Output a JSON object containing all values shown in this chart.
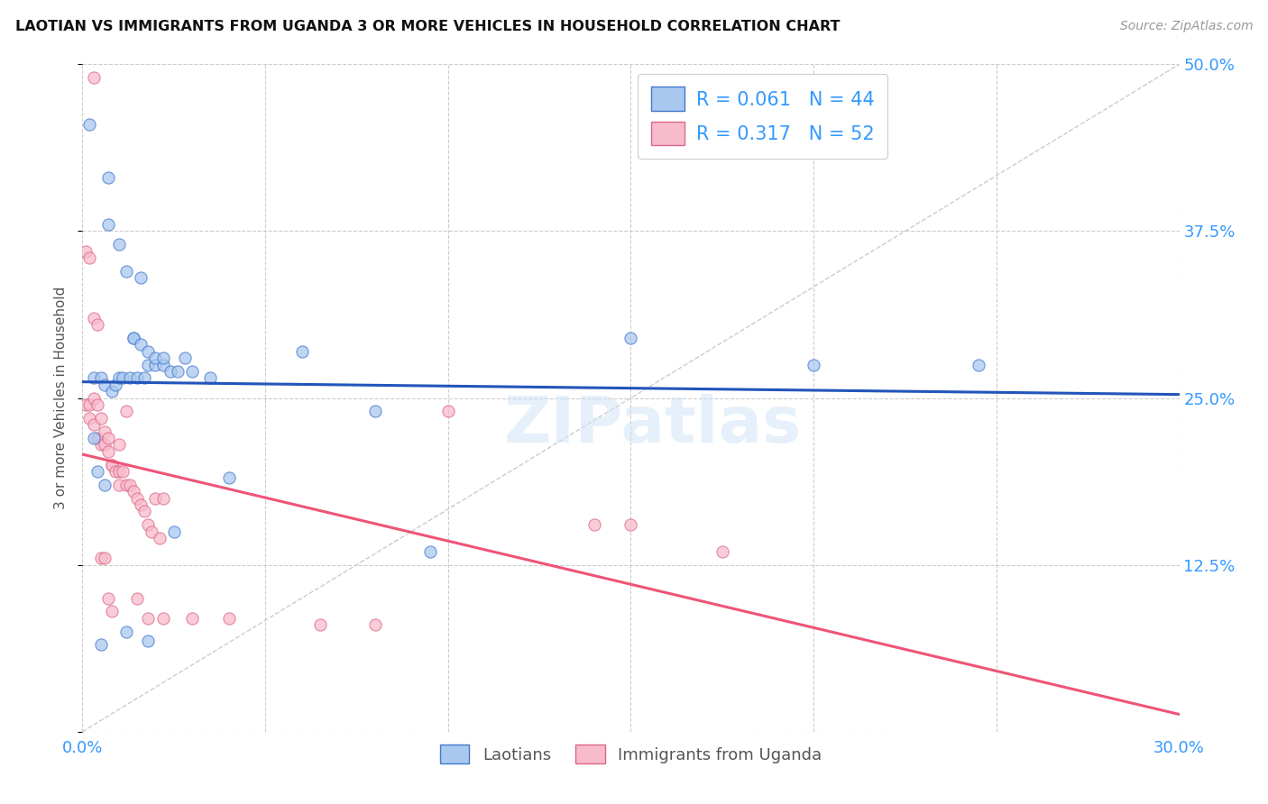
{
  "title": "LAOTIAN VS IMMIGRANTS FROM UGANDA 3 OR MORE VEHICLES IN HOUSEHOLD CORRELATION CHART",
  "source": "Source: ZipAtlas.com",
  "ylabel": "3 or more Vehicles in Household",
  "x_min": 0.0,
  "x_max": 0.3,
  "y_min": 0.0,
  "y_max": 0.5,
  "x_ticks": [
    0.0,
    0.05,
    0.1,
    0.15,
    0.2,
    0.25,
    0.3
  ],
  "x_tick_labels": [
    "0.0%",
    "",
    "",
    "",
    "",
    "",
    "30.0%"
  ],
  "y_ticks": [
    0.0,
    0.125,
    0.25,
    0.375,
    0.5
  ],
  "y_tick_labels": [
    "",
    "12.5%",
    "25.0%",
    "37.5%",
    "50.0%"
  ],
  "r1": "0.061",
  "n1": "44",
  "r2": "0.317",
  "n2": "52",
  "color_laotian_fill": "#A8C8F0",
  "color_laotian_edge": "#4477CC",
  "color_uganda_fill": "#F8BBCC",
  "color_uganda_edge": "#DD6688",
  "color_trendline_lao": "#2255BB",
  "color_trendline_uga": "#EE5577",
  "color_diagonal": "#CCCCCC",
  "watermark": "ZIPatlas",
  "lao_x": [
    0.002,
    0.007,
    0.007,
    0.01,
    0.012,
    0.014,
    0.016,
    0.018,
    0.02,
    0.022,
    0.003,
    0.005,
    0.006,
    0.008,
    0.009,
    0.01,
    0.011,
    0.013,
    0.015,
    0.017,
    0.014,
    0.016,
    0.018,
    0.02,
    0.022,
    0.024,
    0.026,
    0.028,
    0.03,
    0.035,
    0.003,
    0.004,
    0.006,
    0.06,
    0.08,
    0.15,
    0.2,
    0.245,
    0.095,
    0.04,
    0.005,
    0.012,
    0.018,
    0.025
  ],
  "lao_y": [
    0.455,
    0.415,
    0.38,
    0.365,
    0.345,
    0.295,
    0.34,
    0.275,
    0.275,
    0.275,
    0.265,
    0.265,
    0.26,
    0.255,
    0.26,
    0.265,
    0.265,
    0.265,
    0.265,
    0.265,
    0.295,
    0.29,
    0.285,
    0.28,
    0.28,
    0.27,
    0.27,
    0.28,
    0.27,
    0.265,
    0.22,
    0.195,
    0.185,
    0.285,
    0.24,
    0.295,
    0.275,
    0.275,
    0.135,
    0.19,
    0.065,
    0.075,
    0.068,
    0.15
  ],
  "uga_x": [
    0.001,
    0.002,
    0.002,
    0.003,
    0.003,
    0.004,
    0.004,
    0.005,
    0.005,
    0.006,
    0.006,
    0.007,
    0.007,
    0.008,
    0.008,
    0.009,
    0.01,
    0.01,
    0.011,
    0.012,
    0.013,
    0.014,
    0.015,
    0.016,
    0.017,
    0.018,
    0.019,
    0.02,
    0.021,
    0.022,
    0.001,
    0.002,
    0.003,
    0.004,
    0.005,
    0.006,
    0.007,
    0.008,
    0.01,
    0.012,
    0.015,
    0.018,
    0.022,
    0.03,
    0.04,
    0.065,
    0.08,
    0.1,
    0.14,
    0.175,
    0.003,
    0.15
  ],
  "uga_y": [
    0.245,
    0.245,
    0.235,
    0.25,
    0.23,
    0.245,
    0.22,
    0.235,
    0.215,
    0.225,
    0.215,
    0.22,
    0.21,
    0.2,
    0.2,
    0.195,
    0.195,
    0.185,
    0.195,
    0.185,
    0.185,
    0.18,
    0.175,
    0.17,
    0.165,
    0.155,
    0.15,
    0.175,
    0.145,
    0.175,
    0.36,
    0.355,
    0.31,
    0.305,
    0.13,
    0.13,
    0.1,
    0.09,
    0.215,
    0.24,
    0.1,
    0.085,
    0.085,
    0.085,
    0.085,
    0.08,
    0.08,
    0.24,
    0.155,
    0.135,
    0.49,
    0.155
  ]
}
